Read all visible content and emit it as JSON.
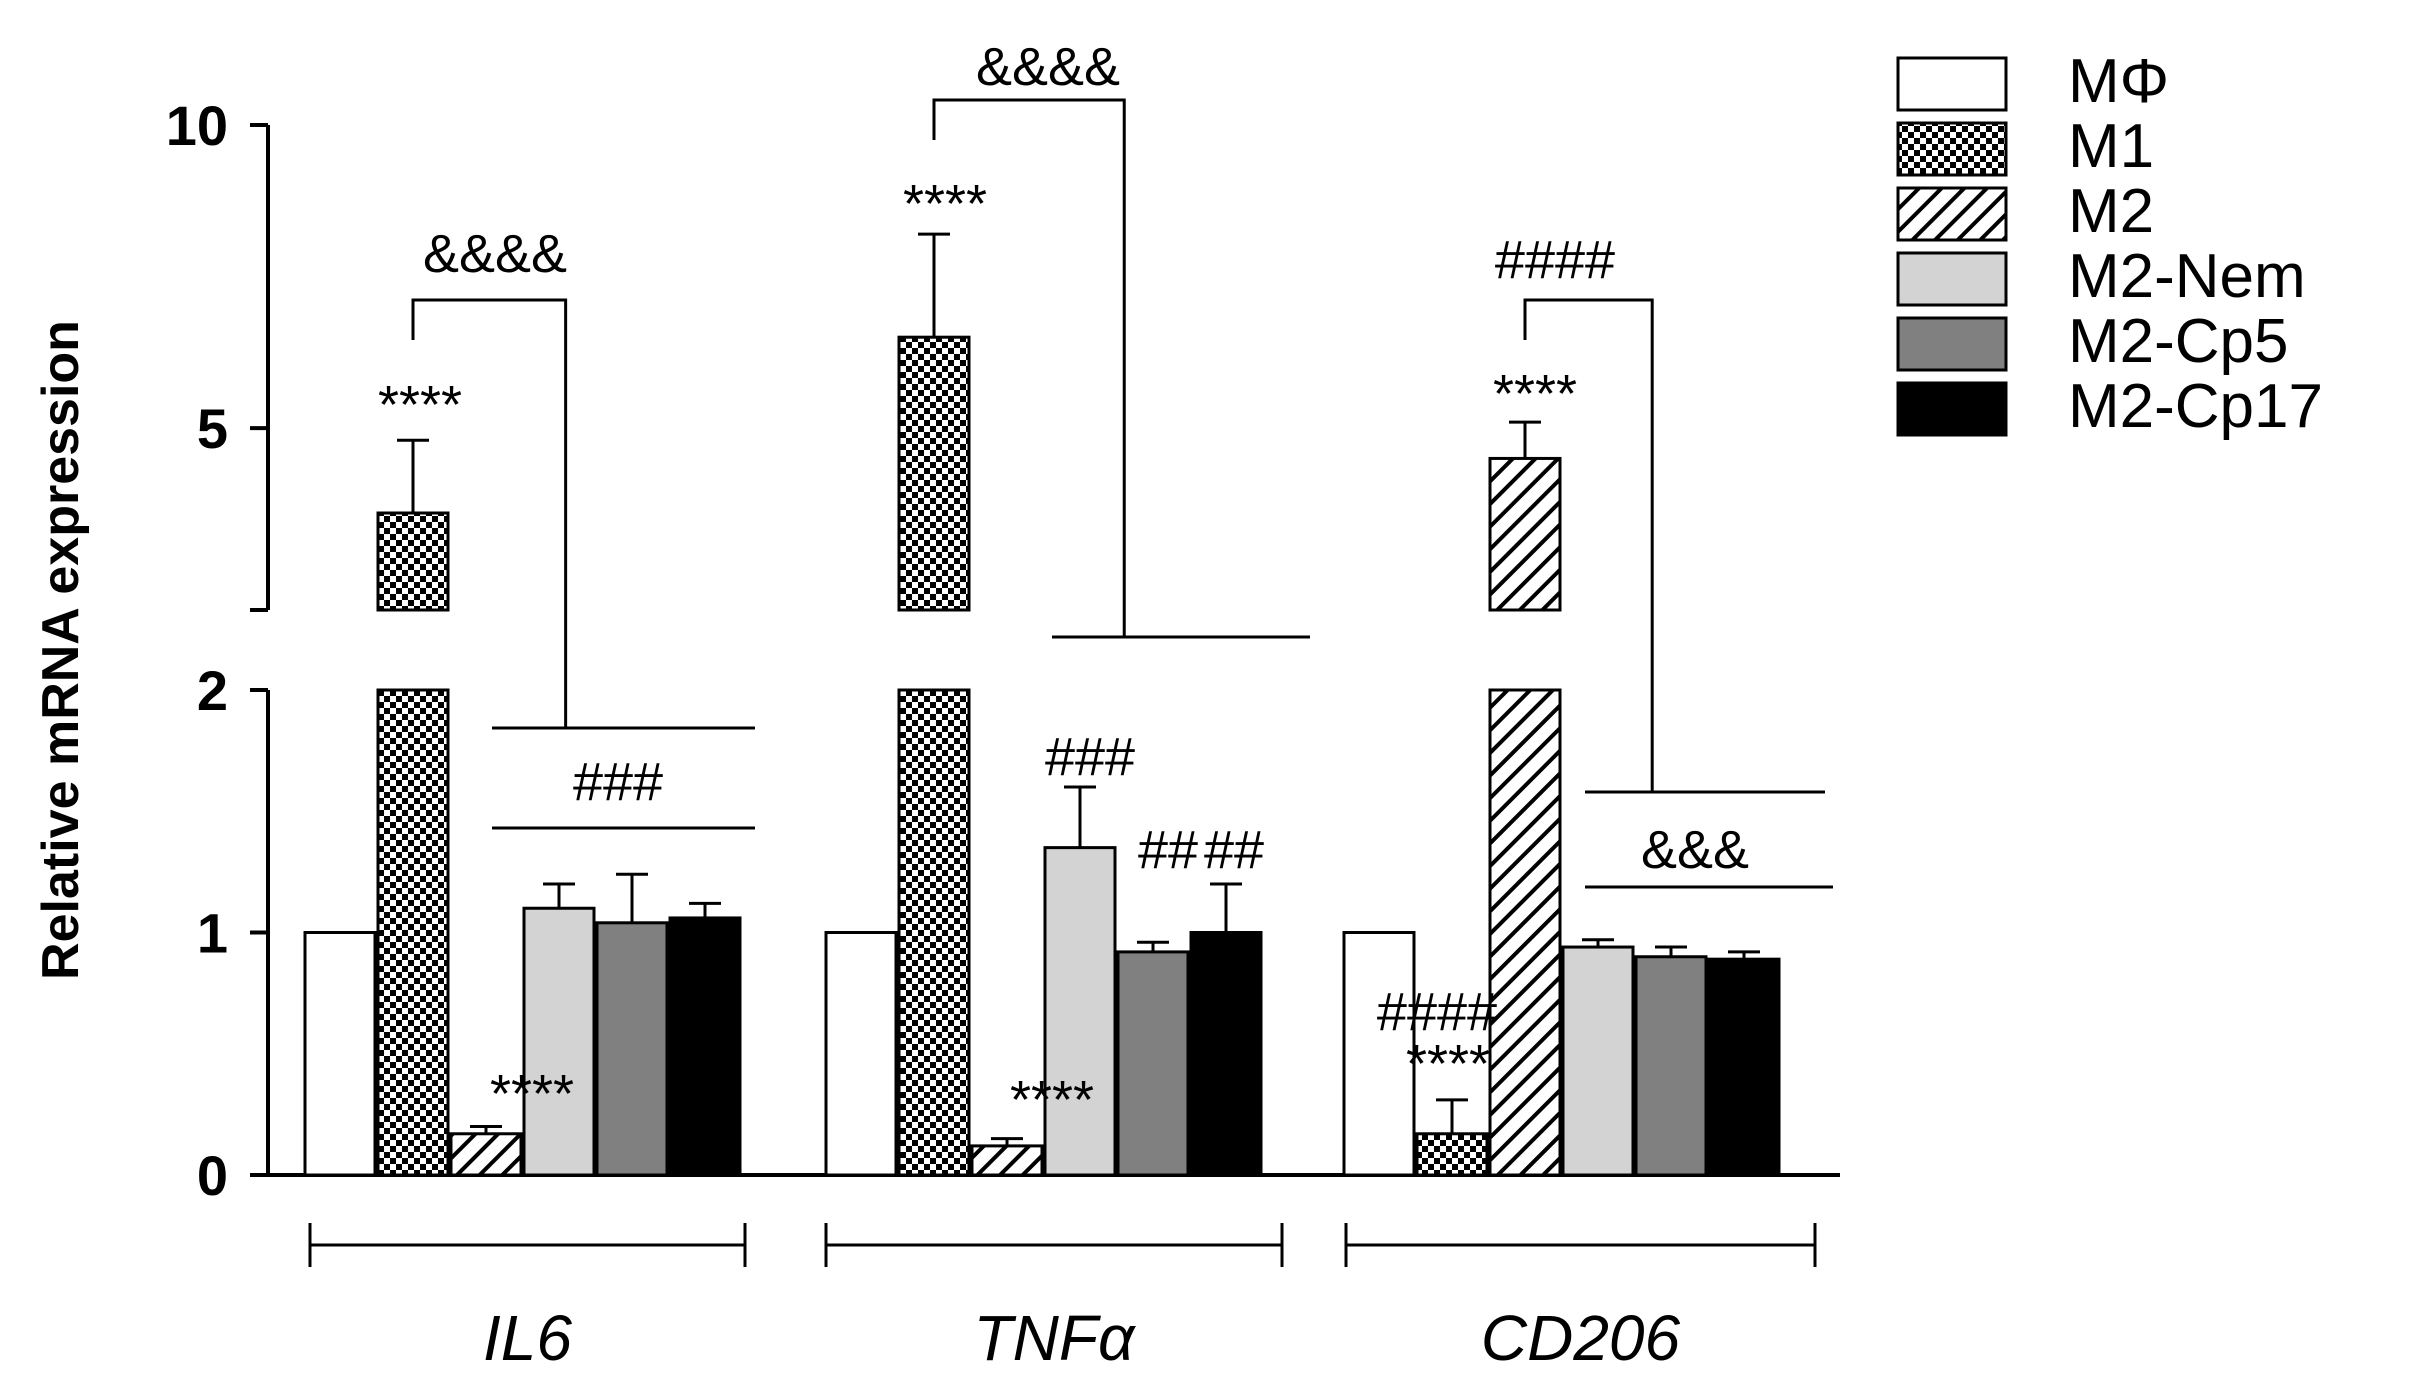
{
  "chart_data": {
    "type": "bar",
    "ylabel": "Relative mRNA expression",
    "y_axis_break": {
      "lower_range": [
        0,
        2
      ],
      "upper_range": [
        2,
        10
      ]
    },
    "yticks": [
      {
        "value": 0,
        "label": "0"
      },
      {
        "value": 1,
        "label": "1"
      },
      {
        "value": 2,
        "label": "2"
      },
      {
        "value": 5,
        "label": "5"
      },
      {
        "value": 10,
        "label": "10"
      }
    ],
    "categories": [
      "IL6",
      "TNFα",
      "CD206"
    ],
    "category_labels": [
      "IL6",
      "TNFα",
      "CD206"
    ],
    "series": [
      {
        "name": "MΦ",
        "fill": "white",
        "values": [
          1.0,
          1.0,
          1.0
        ],
        "errors": [
          0,
          0,
          0
        ]
      },
      {
        "name": "M1",
        "fill": "checker",
        "values": [
          3.6,
          6.5,
          0.17
        ],
        "errors": [
          1.2,
          1.7,
          0.14
        ]
      },
      {
        "name": "M2",
        "fill": "hatch",
        "values": [
          0.17,
          0.12,
          4.5
        ],
        "errors": [
          0.03,
          0.03,
          0.6
        ]
      },
      {
        "name": "M2-Nem",
        "fill": "#d3d3d3",
        "values": [
          1.1,
          1.35,
          0.94
        ],
        "errors": [
          0.1,
          0.25,
          0.03
        ]
      },
      {
        "name": "M2-Cp5",
        "fill": "#808080",
        "values": [
          1.04,
          0.92,
          0.9
        ],
        "errors": [
          0.2,
          0.04,
          0.04
        ]
      },
      {
        "name": "M2-Cp17",
        "fill": "#000000",
        "values": [
          1.06,
          1.0,
          0.89
        ],
        "errors": [
          0.06,
          0.2,
          0.03
        ]
      }
    ],
    "annotations": [
      {
        "text": "****",
        "group": 0,
        "series": 1,
        "anchor": "error-top"
      },
      {
        "text": "****",
        "group": 0,
        "series": 2,
        "anchor": "error-top"
      },
      {
        "text": "&&&&",
        "group": 0,
        "type": "comparison-bracket-label"
      },
      {
        "text": "###",
        "group": 0,
        "type": "comparison-line-label"
      },
      {
        "text": "****",
        "group": 1,
        "series": 1,
        "anchor": "error-top"
      },
      {
        "text": "****",
        "group": 1,
        "series": 2,
        "anchor": "error-top"
      },
      {
        "text": "&&&&",
        "group": 1,
        "type": "comparison-bracket-label"
      },
      {
        "text": "###",
        "group": 1,
        "series": 3,
        "anchor": "error-top"
      },
      {
        "text": "##",
        "group": 1,
        "series": 4,
        "anchor": "error-top"
      },
      {
        "text": "##",
        "group": 1,
        "series": 5,
        "anchor": "error-top"
      },
      {
        "text": "****",
        "group": 2,
        "series": 2,
        "anchor": "error-top"
      },
      {
        "text": "####",
        "group": 2,
        "series": 1,
        "anchor": "error-top-high"
      },
      {
        "text": "****",
        "group": 2,
        "series": 1,
        "anchor": "error-top"
      },
      {
        "text": "####",
        "group": 2,
        "type": "comparison-bracket-label"
      },
      {
        "text": "&&&",
        "group": 2,
        "type": "comparison-line-label"
      }
    ],
    "legend": {
      "position": "right",
      "entries": [
        "MΦ",
        "M1",
        "M2",
        "M2-Nem",
        "M2-Cp5",
        "M2-Cp17"
      ]
    }
  }
}
